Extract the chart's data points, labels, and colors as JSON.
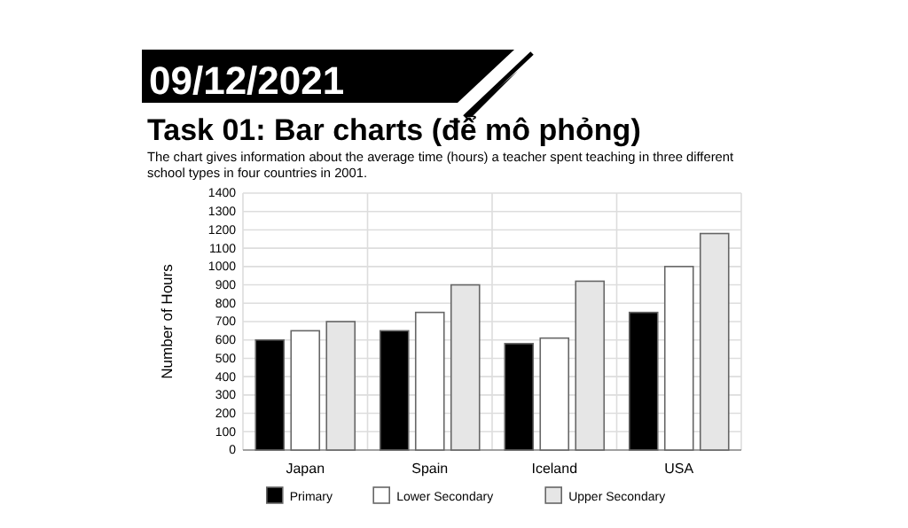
{
  "chart_data": {
    "type": "bar",
    "title": "Task 01: Bar charts (để mô phỏng)",
    "subtitle": "The chart gives information about the average time (hours) a teacher spent teaching in three different school types in four countries in 2001.",
    "annotations": [
      "09/12/2021"
    ],
    "ylabel": "Number of Hours",
    "categories": [
      "Japan",
      "Spain",
      "Iceland",
      "USA"
    ],
    "series": [
      {
        "name": "Primary",
        "color": "#000000",
        "values": [
          600,
          650,
          580,
          750
        ]
      },
      {
        "name": "Lower Secondary",
        "color": "#ffffff",
        "values": [
          650,
          750,
          610,
          1000
        ]
      },
      {
        "name": "Upper Secondary",
        "color": "#e6e6e6",
        "values": [
          700,
          900,
          920,
          1180
        ]
      }
    ],
    "ylim": [
      0,
      1400
    ],
    "yticks": [
      0,
      100,
      200,
      300,
      400,
      500,
      600,
      700,
      800,
      900,
      1000,
      1100,
      1200,
      1300,
      1400
    ],
    "grid": true,
    "legend": "bottom"
  }
}
